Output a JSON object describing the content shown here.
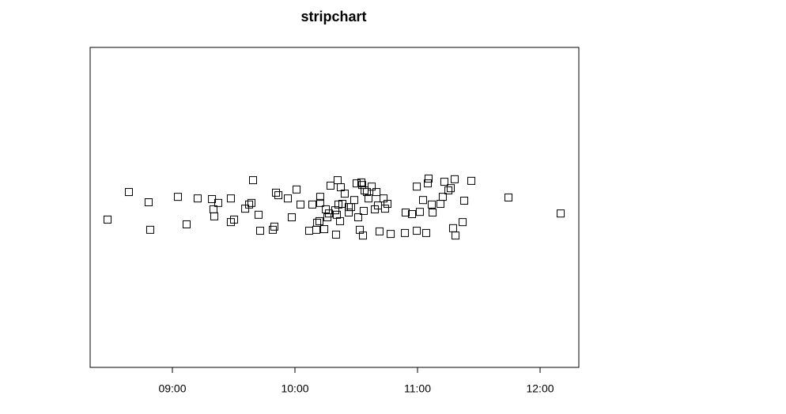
{
  "chart_data": {
    "type": "scatter",
    "title": "stripchart",
    "marker": "square",
    "color": "#000000",
    "xlim": [
      8.329,
      12.316
    ],
    "ylim": [
      0.5,
      1.5
    ],
    "xticks": [
      {
        "value": 9,
        "label": "09:00"
      },
      {
        "value": 10,
        "label": "10:00"
      },
      {
        "value": 11,
        "label": "11:00"
      },
      {
        "value": 12,
        "label": "12:00"
      }
    ],
    "x": [
      8.471,
      8.645,
      8.806,
      8.819,
      9.045,
      9.116,
      9.206,
      9.323,
      9.335,
      9.342,
      9.374,
      9.477,
      9.477,
      9.503,
      9.594,
      9.626,
      9.645,
      9.658,
      9.703,
      9.716,
      9.819,
      9.832,
      9.845,
      9.865,
      9.942,
      9.974,
      10.013,
      10.045,
      10.116,
      10.142,
      10.174,
      10.181,
      10.2,
      10.206,
      10.206,
      10.239,
      10.252,
      10.265,
      10.277,
      10.29,
      10.329,
      10.335,
      10.342,
      10.348,
      10.355,
      10.368,
      10.374,
      10.387,
      10.406,
      10.439,
      10.439,
      10.458,
      10.484,
      10.503,
      10.516,
      10.529,
      10.542,
      10.548,
      10.555,
      10.561,
      10.568,
      10.587,
      10.6,
      10.626,
      10.652,
      10.665,
      10.677,
      10.69,
      10.723,
      10.735,
      10.755,
      10.781,
      10.897,
      10.903,
      10.955,
      10.994,
      10.994,
      11.019,
      11.045,
      11.071,
      11.084,
      11.09,
      11.116,
      11.123,
      11.187,
      11.206,
      11.219,
      11.252,
      11.271,
      11.29,
      11.303,
      11.31,
      11.368,
      11.381,
      11.439,
      11.742,
      12.168
    ],
    "y": [
      0.962,
      1.048,
      1.016,
      0.93,
      1.033,
      0.947,
      1.028,
      1.026,
      0.994,
      0.972,
      1.014,
      1.028,
      0.954,
      0.962,
      0.996,
      1.009,
      1.014,
      1.085,
      0.977,
      0.927,
      0.93,
      0.94,
      1.046,
      1.038,
      1.028,
      0.969,
      1.056,
      1.009,
      0.927,
      1.009,
      0.93,
      0.952,
      0.957,
      1.033,
      1.014,
      0.932,
      0.994,
      0.969,
      0.981,
      1.068,
      0.991,
      0.915,
      0.977,
      1.085,
      1.009,
      0.957,
      1.063,
      1.011,
      1.043,
      1.001,
      0.984,
      1.001,
      1.023,
      1.075,
      0.969,
      0.93,
      1.078,
      1.07,
      0.912,
      0.989,
      1.053,
      1.048,
      1.028,
      1.065,
      0.994,
      1.048,
      1.006,
      0.925,
      1.028,
      0.996,
      1.011,
      0.917,
      0.92,
      0.984,
      0.979,
      1.065,
      0.927,
      0.986,
      1.023,
      0.92,
      1.075,
      1.09,
      1.009,
      0.984,
      1.011,
      1.033,
      1.08,
      1.053,
      1.06,
      0.935,
      1.088,
      0.912,
      0.954,
      1.021,
      1.083,
      1.031,
      0.981
    ]
  }
}
